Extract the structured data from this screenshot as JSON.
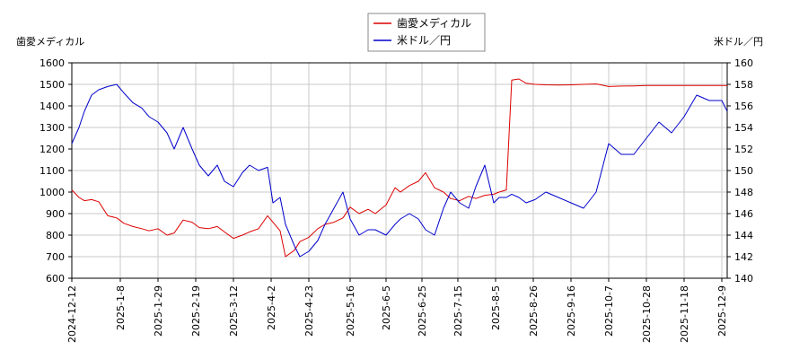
{
  "chart_data": {
    "type": "line",
    "left_axis_title": "歯愛メディカル",
    "right_axis_title": "米ドル／円",
    "legend": [
      {
        "name": "歯愛メディカル",
        "color": "#dd0000"
      },
      {
        "name": "米ドル／円",
        "color": "#0000cc"
      }
    ],
    "legend_placement": "top-center",
    "grid": true,
    "x_range": [
      "2024-12-12",
      "2025-12-12"
    ],
    "x_ticks": [
      "2024-12-12",
      "2025-1-8",
      "2025-1-29",
      "2025-2-19",
      "2025-3-12",
      "2025-4-2",
      "2025-4-23",
      "2025-5-16",
      "2025-6-5",
      "2025-6-25",
      "2025-7-15",
      "2025-8-5",
      "2025-8-26",
      "2025-9-16",
      "2025-10-7",
      "2025-10-28",
      "2025-11-18",
      "2025-12-9"
    ],
    "y_left": {
      "min": 600,
      "max": 1600,
      "ticks": [
        600,
        700,
        800,
        900,
        1000,
        1100,
        1200,
        1300,
        1400,
        1500,
        1600
      ]
    },
    "y_right": {
      "min": 140,
      "max": 160,
      "ticks": [
        140,
        142,
        144,
        146,
        148,
        150,
        152,
        154,
        156,
        158,
        160
      ]
    },
    "series": [
      {
        "name": "歯愛メディカル",
        "color": "#dd0000",
        "axis": "left",
        "x": [
          "2024-12-12",
          "2024-12-16",
          "2024-12-19",
          "2024-12-23",
          "2024-12-27",
          "2025-1-1",
          "2025-1-6",
          "2025-1-10",
          "2025-1-15",
          "2025-1-20",
          "2025-1-24",
          "2025-1-29",
          "2025-2-3",
          "2025-2-7",
          "2025-2-12",
          "2025-2-17",
          "2025-2-21",
          "2025-2-26",
          "2025-3-3",
          "2025-3-7",
          "2025-3-12",
          "2025-3-17",
          "2025-3-21",
          "2025-3-26",
          "2025-3-31",
          "2025-4-3",
          "2025-4-7",
          "2025-4-10",
          "2025-4-15",
          "2025-4-18",
          "2025-4-23",
          "2025-4-28",
          "2025-5-2",
          "2025-5-7",
          "2025-5-12",
          "2025-5-16",
          "2025-5-21",
          "2025-5-26",
          "2025-5-30",
          "2025-6-5",
          "2025-6-10",
          "2025-6-13",
          "2025-6-18",
          "2025-6-23",
          "2025-6-27",
          "2025-7-2",
          "2025-7-7",
          "2025-7-11",
          "2025-7-16",
          "2025-7-21",
          "2025-7-25",
          "2025-7-30",
          "2025-8-4",
          "2025-8-7",
          "2025-8-11",
          "2025-8-14",
          "2025-8-18",
          "2025-8-22",
          "2025-8-27",
          "2025-9-2",
          "2025-9-9",
          "2025-9-16",
          "2025-9-23",
          "2025-9-30",
          "2025-10-7",
          "2025-10-14",
          "2025-10-21",
          "2025-10-28",
          "2025-11-4",
          "2025-11-11",
          "2025-11-18",
          "2025-11-25",
          "2025-12-2",
          "2025-12-9",
          "2025-12-12"
        ],
        "values": [
          1010,
          975,
          960,
          965,
          955,
          890,
          880,
          855,
          840,
          830,
          820,
          830,
          800,
          810,
          870,
          860,
          835,
          830,
          840,
          815,
          785,
          800,
          815,
          830,
          890,
          860,
          820,
          700,
          730,
          770,
          790,
          830,
          850,
          860,
          880,
          930,
          900,
          920,
          900,
          940,
          1020,
          1000,
          1030,
          1050,
          1090,
          1020,
          1000,
          970,
          960,
          980,
          970,
          985,
          990,
          1000,
          1010,
          1520,
          1525,
          1505,
          1500,
          1498,
          1497,
          1498,
          1500,
          1502,
          1490,
          1492,
          1493,
          1495,
          1495,
          1495,
          1495,
          1495,
          1495,
          1495,
          1495
        ]
      },
      {
        "name": "米ドル／円",
        "color": "#0000cc",
        "axis": "right",
        "x": [
          "2024-12-12",
          "2024-12-16",
          "2024-12-19",
          "2024-12-23",
          "2024-12-27",
          "2025-1-1",
          "2025-1-6",
          "2025-1-10",
          "2025-1-15",
          "2025-1-20",
          "2025-1-24",
          "2025-1-29",
          "2025-2-3",
          "2025-2-7",
          "2025-2-12",
          "2025-2-17",
          "2025-2-21",
          "2025-2-26",
          "2025-3-3",
          "2025-3-7",
          "2025-3-12",
          "2025-3-17",
          "2025-3-21",
          "2025-3-26",
          "2025-3-31",
          "2025-4-3",
          "2025-4-7",
          "2025-4-10",
          "2025-4-15",
          "2025-4-18",
          "2025-4-23",
          "2025-4-28",
          "2025-5-2",
          "2025-5-7",
          "2025-5-12",
          "2025-5-16",
          "2025-5-21",
          "2025-5-26",
          "2025-5-30",
          "2025-6-5",
          "2025-6-10",
          "2025-6-13",
          "2025-6-18",
          "2025-6-23",
          "2025-6-27",
          "2025-7-2",
          "2025-7-7",
          "2025-7-11",
          "2025-7-16",
          "2025-7-21",
          "2025-7-25",
          "2025-7-30",
          "2025-8-4",
          "2025-8-7",
          "2025-8-11",
          "2025-8-14",
          "2025-8-18",
          "2025-8-22",
          "2025-8-27",
          "2025-9-2",
          "2025-9-9",
          "2025-9-16",
          "2025-9-23",
          "2025-9-30",
          "2025-10-7",
          "2025-10-14",
          "2025-10-21",
          "2025-10-28",
          "2025-11-4",
          "2025-11-11",
          "2025-11-18",
          "2025-11-25",
          "2025-12-2",
          "2025-12-9",
          "2025-12-12"
        ],
        "values": [
          152.5,
          154.0,
          155.5,
          157.0,
          157.5,
          157.8,
          158.0,
          157.2,
          156.3,
          155.8,
          155.0,
          154.5,
          153.5,
          152.0,
          154.0,
          152.0,
          150.5,
          149.5,
          150.5,
          149.0,
          148.5,
          149.8,
          150.5,
          150.0,
          150.3,
          147.0,
          147.5,
          145.0,
          143.0,
          142.0,
          142.5,
          143.5,
          145.0,
          146.5,
          148.0,
          145.5,
          144.0,
          144.5,
          144.5,
          144.0,
          145.0,
          145.5,
          146.0,
          145.5,
          144.5,
          144.0,
          146.5,
          148.0,
          147.0,
          146.5,
          148.5,
          150.5,
          147.0,
          147.5,
          147.5,
          147.8,
          147.5,
          147.0,
          147.3,
          148.0,
          147.5,
          147.0,
          146.5,
          148.0,
          152.5,
          151.5,
          151.5,
          153.0,
          154.5,
          153.5,
          155.0,
          157.0,
          156.5,
          156.5,
          155.5
        ]
      }
    ]
  }
}
